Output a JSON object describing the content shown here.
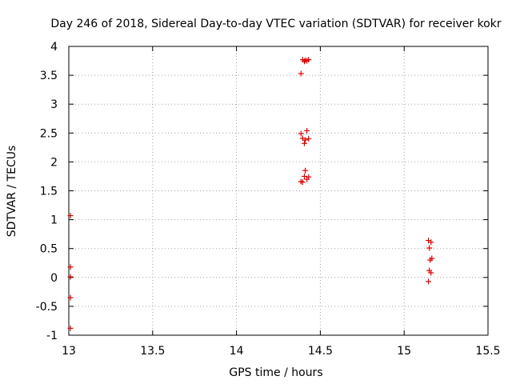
{
  "chart_data": {
    "type": "scatter",
    "title": "Day 246 of 2018, Sidereal Day-to-day VTEC variation (SDTVAR) for receiver kokr",
    "xlabel": "GPS time / hours",
    "ylabel": "SDTVAR / TECUs",
    "xlim": [
      13,
      15.5
    ],
    "ylim": [
      -1,
      4
    ],
    "xticks": [
      "13",
      "13.5",
      "14",
      "14.5",
      "15",
      "15.5"
    ],
    "yticks": [
      "-1",
      "-0.5",
      "0",
      "0.5",
      "1",
      "1.5",
      "2",
      "2.5",
      "3",
      "3.5",
      "4"
    ],
    "grid": true,
    "marker": "+",
    "color": "#e00000",
    "points": [
      [
        13.01,
        1.07
      ],
      [
        13.01,
        0.18
      ],
      [
        13.01,
        0.01
      ],
      [
        13.01,
        -0.35
      ],
      [
        13.01,
        -0.88
      ],
      [
        14.385,
        3.53
      ],
      [
        14.395,
        3.77
      ],
      [
        14.405,
        3.74
      ],
      [
        14.41,
        3.76
      ],
      [
        14.42,
        3.75
      ],
      [
        14.43,
        3.77
      ],
      [
        14.385,
        2.49
      ],
      [
        14.395,
        2.41
      ],
      [
        14.405,
        2.32
      ],
      [
        14.41,
        2.38
      ],
      [
        14.42,
        2.54
      ],
      [
        14.43,
        2.4
      ],
      [
        14.385,
        1.66
      ],
      [
        14.395,
        1.65
      ],
      [
        14.405,
        1.75
      ],
      [
        14.41,
        1.85
      ],
      [
        14.42,
        1.7
      ],
      [
        14.43,
        1.74
      ],
      [
        15.145,
        0.64
      ],
      [
        15.15,
        0.51
      ],
      [
        15.16,
        0.61
      ],
      [
        15.155,
        0.3
      ],
      [
        15.165,
        0.33
      ],
      [
        15.15,
        0.12
      ],
      [
        15.16,
        0.08
      ],
      [
        15.145,
        -0.07
      ]
    ]
  }
}
